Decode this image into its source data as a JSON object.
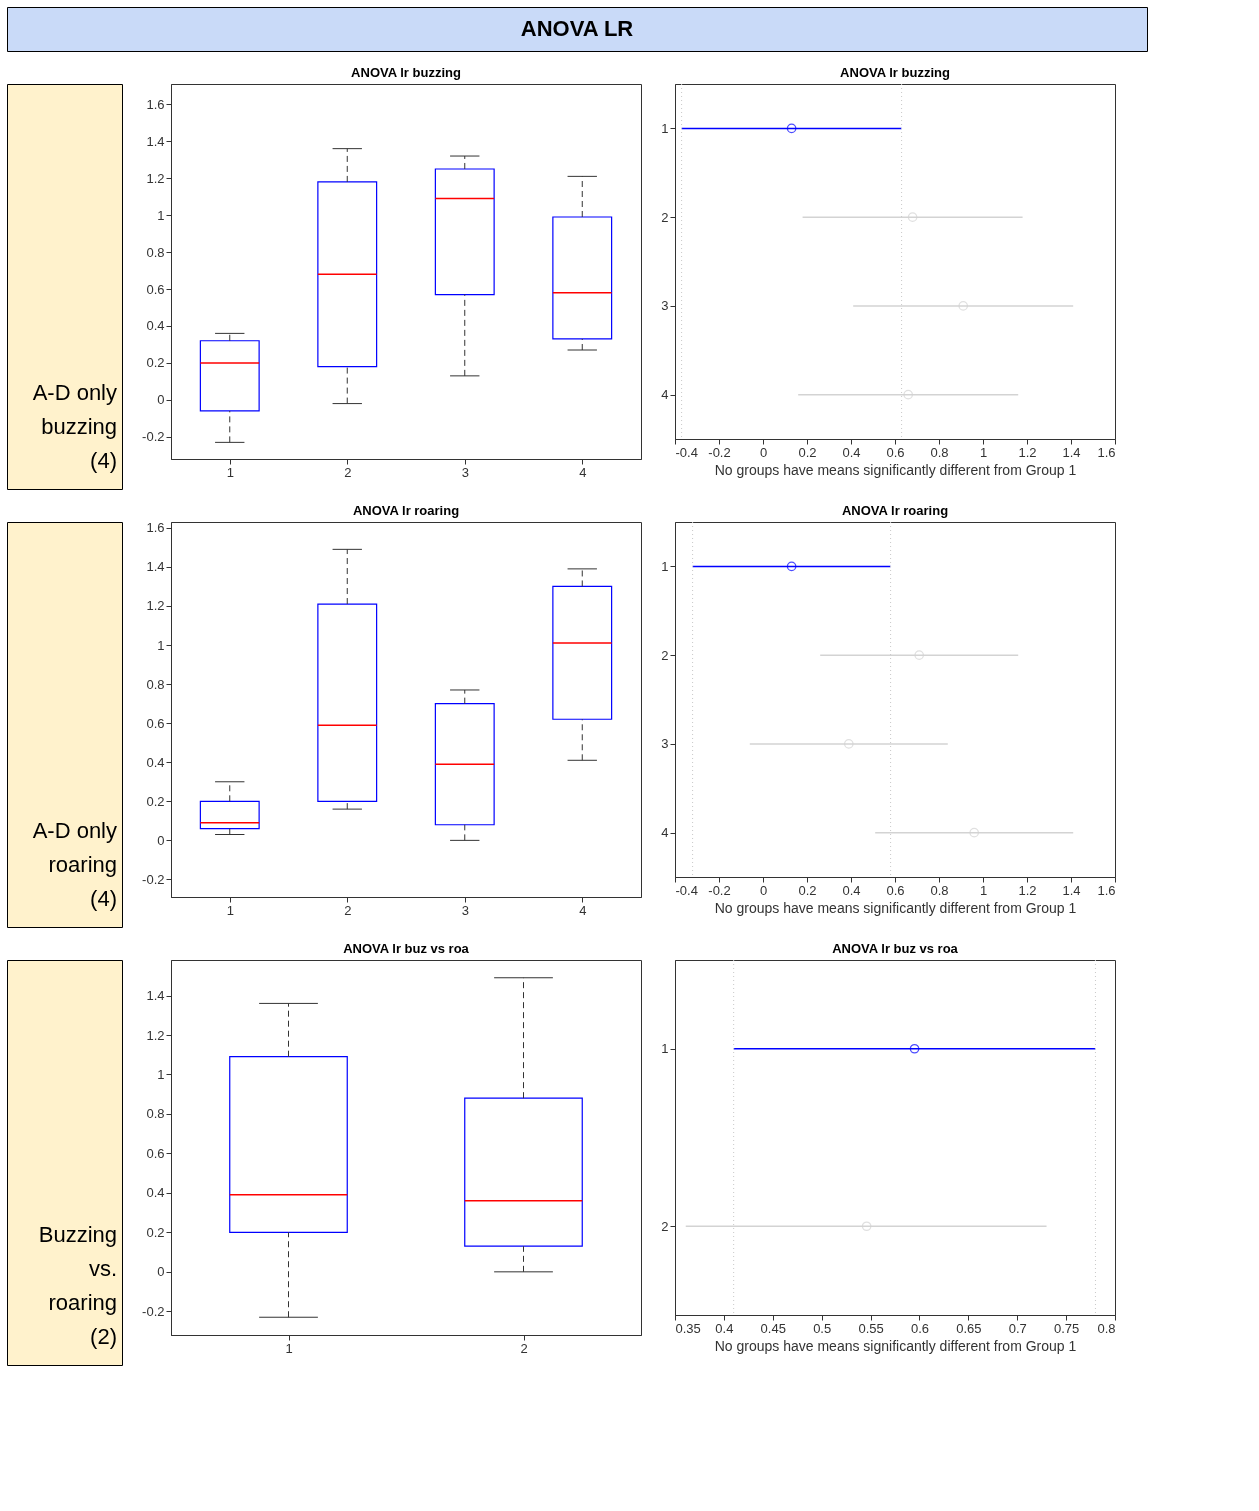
{
  "chart_data": [
    {
      "type": "box",
      "title": "ANOVA lr buzzing",
      "annotations": [
        "ANOVA LR",
        "A-D only buzzing (4)"
      ],
      "categories": [
        "1",
        "2",
        "3",
        "4"
      ],
      "series": [
        {
          "color": "#0000ff",
          "boxes": [
            {
              "low": -0.23,
              "q1": -0.06,
              "median": 0.2,
              "q3": 0.32,
              "high": 0.36
            },
            {
              "low": -0.02,
              "q1": 0.18,
              "median": 0.68,
              "q3": 1.18,
              "high": 1.36
            },
            {
              "low": 0.13,
              "q1": 0.57,
              "median": 1.09,
              "q3": 1.25,
              "high": 1.32
            },
            {
              "low": 0.27,
              "q1": 0.33,
              "median": 0.58,
              "q3": 0.99,
              "high": 1.21
            }
          ]
        }
      ],
      "ylim": [
        -0.32,
        1.71
      ],
      "yticks": [
        -0.2,
        0,
        0.2,
        0.4,
        0.6,
        0.8,
        1,
        1.2,
        1.4,
        1.6
      ],
      "grid": false
    },
    {
      "type": "scatter",
      "title": "ANOVA lr buzzing",
      "xlabel": "No groups have means significantly different from Group 1",
      "x": [
        0.13,
        0.68,
        0.91,
        0.66
      ],
      "values": [
        1,
        2,
        3,
        4
      ],
      "ylim": [
        4.5,
        0.5
      ],
      "yticks": [
        1,
        2,
        3,
        4
      ],
      "xerrors": [
        [
          -0.37,
          0.63
        ],
        [
          0.18,
          1.18
        ],
        [
          0.41,
          1.41
        ],
        [
          0.16,
          1.16
        ]
      ],
      "colors": [
        "#0000ff",
        "#d3d3d3",
        "#d3d3d3",
        "#d3d3d3"
      ],
      "xlim": [
        -0.4,
        1.6
      ],
      "xticks": [
        -0.4,
        -0.2,
        0,
        0.2,
        0.4,
        0.6,
        0.8,
        1,
        1.2,
        1.4,
        1.6
      ],
      "ref_lines": [
        {
          "axis": "x",
          "value": -0.37,
          "color": "#c8c8c8",
          "line_style": "dotted"
        },
        {
          "axis": "x",
          "value": 0.63,
          "color": "#c8c8c8",
          "line_style": "dotted"
        }
      ],
      "marker": "circle",
      "grid": false
    },
    {
      "type": "box",
      "title": "ANOVA lr roaring",
      "annotations": [
        "A-D only roaring (4)"
      ],
      "categories": [
        "1",
        "2",
        "3",
        "4"
      ],
      "series": [
        {
          "color": "#0000ff",
          "boxes": [
            {
              "low": 0.03,
              "q1": 0.06,
              "median": 0.09,
              "q3": 0.2,
              "high": 0.3
            },
            {
              "low": 0.16,
              "q1": 0.2,
              "median": 0.59,
              "q3": 1.21,
              "high": 1.49
            },
            {
              "low": 0.0,
              "q1": 0.08,
              "median": 0.39,
              "q3": 0.7,
              "high": 0.77
            },
            {
              "low": 0.41,
              "q1": 0.62,
              "median": 1.01,
              "q3": 1.3,
              "high": 1.39
            }
          ]
        }
      ],
      "ylim": [
        -0.29,
        1.63
      ],
      "yticks": [
        -0.2,
        0,
        0.2,
        0.4,
        0.6,
        0.8,
        1,
        1.2,
        1.4,
        1.6
      ],
      "grid": false
    },
    {
      "type": "scatter",
      "title": "ANOVA lr roaring",
      "xlabel": "No groups have means significantly different from Group 1",
      "x": [
        0.13,
        0.71,
        0.39,
        0.96
      ],
      "values": [
        1,
        2,
        3,
        4
      ],
      "ylim": [
        4.5,
        0.5
      ],
      "yticks": [
        1,
        2,
        3,
        4
      ],
      "xerrors": [
        [
          -0.32,
          0.58
        ],
        [
          0.26,
          1.16
        ],
        [
          -0.06,
          0.84
        ],
        [
          0.51,
          1.41
        ]
      ],
      "colors": [
        "#0000ff",
        "#d3d3d3",
        "#d3d3d3",
        "#d3d3d3"
      ],
      "xlim": [
        -0.4,
        1.6
      ],
      "xticks": [
        -0.4,
        -0.2,
        0,
        0.2,
        0.4,
        0.6,
        0.8,
        1,
        1.2,
        1.4,
        1.6
      ],
      "ref_lines": [
        {
          "axis": "x",
          "value": -0.32,
          "color": "#c8c8c8",
          "line_style": "dotted"
        },
        {
          "axis": "x",
          "value": 0.58,
          "color": "#c8c8c8",
          "line_style": "dotted"
        }
      ],
      "marker": "circle",
      "grid": false
    },
    {
      "type": "box",
      "title": "ANOVA lr buz vs roa",
      "annotations": [
        "Buzzing vs. roaring (2)"
      ],
      "categories": [
        "1",
        "2"
      ],
      "series": [
        {
          "color": "#0000ff",
          "boxes": [
            {
              "low": -0.23,
              "q1": 0.2,
              "median": 0.39,
              "q3": 1.09,
              "high": 1.36
            },
            {
              "low": 0.0,
              "q1": 0.13,
              "median": 0.36,
              "q3": 0.88,
              "high": 1.49
            }
          ]
        }
      ],
      "ylim": [
        -0.32,
        1.58
      ],
      "yticks": [
        -0.2,
        0,
        0.2,
        0.4,
        0.6,
        0.8,
        1,
        1.2,
        1.4
      ],
      "grid": false
    },
    {
      "type": "scatter",
      "title": "ANOVA lr buz vs roa",
      "xlabel": "No groups have means significantly different from Group 1",
      "x": [
        0.595,
        0.546
      ],
      "values": [
        1,
        2
      ],
      "ylim": [
        2.5,
        0.5
      ],
      "yticks": [
        1,
        2
      ],
      "xerrors": [
        [
          0.41,
          0.78
        ],
        [
          0.361,
          0.73
        ]
      ],
      "colors": [
        "#0000ff",
        "#d3d3d3"
      ],
      "xlim": [
        0.35,
        0.8
      ],
      "xticks": [
        0.35,
        0.4,
        0.45,
        0.5,
        0.55,
        0.6,
        0.65,
        0.7,
        0.75,
        0.8
      ],
      "ref_lines": [
        {
          "axis": "x",
          "value": 0.41,
          "color": "#c8c8c8",
          "line_style": "dotted"
        },
        {
          "axis": "x",
          "value": 0.78,
          "color": "#c8c8c8",
          "line_style": "dotted"
        }
      ],
      "marker": "circle",
      "grid": false
    }
  ]
}
